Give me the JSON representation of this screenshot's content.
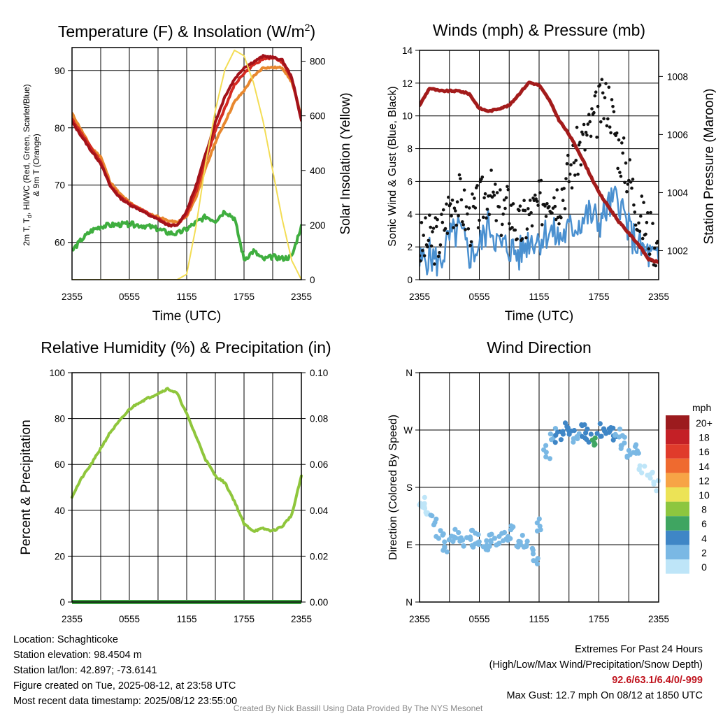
{
  "chart_data": [
    {
      "type": "line",
      "title": "Temperature (F) & Insolation (W/m²)",
      "title_parts": {
        "main": "Temperature (F) & Insolation (W/m",
        "sup": "2",
        "end": ")"
      },
      "xlabel": "Time (UTC)",
      "ylabel": {
        "lead": "2m T, T",
        "sub": "d",
        "tail": ", HI/WC (Red, Green, Scarlet/Blue)",
        "line2": "& 9m T (Orange)"
      },
      "ylabel_right": "Solar Insolation (Yellow)",
      "x_ticks": [
        "2355",
        "0555",
        "1155",
        "1755",
        "2355"
      ],
      "y_ticks": [
        "60",
        "70",
        "80",
        "90"
      ],
      "y_ticks_right": [
        "0",
        "200",
        "400",
        "600",
        "800"
      ],
      "ylim": [
        53.5,
        94
      ],
      "ylim_right": [
        0,
        850
      ],
      "grid": true,
      "x": [
        0,
        1,
        2,
        3,
        4,
        5,
        6,
        7,
        8,
        9,
        10,
        11,
        12,
        13,
        14,
        15,
        16,
        17,
        18,
        19,
        20,
        21,
        22,
        23,
        24
      ],
      "series": [
        {
          "color": "#e8882f",
          "axis": "left",
          "values": [
            82.5,
            79.5,
            76.5,
            75.0,
            70.5,
            68.5,
            67.0,
            66.0,
            65.0,
            64.5,
            63.8,
            63.5,
            64.5,
            68.0,
            73.0,
            77.5,
            81.0,
            84.5,
            86.5,
            89.0,
            90.5,
            90.5,
            90.5,
            88.0,
            82.0
          ]
        },
        {
          "color": "#d42a22",
          "axis": "left",
          "values": [
            81.5,
            79.0,
            76.5,
            74.0,
            70.0,
            68.0,
            66.8,
            66.0,
            65.0,
            64.2,
            63.2,
            63.0,
            65.0,
            69.0,
            74.5,
            79.5,
            83.5,
            87.5,
            89.5,
            91.0,
            92.0,
            92.2,
            91.5,
            88.5,
            81.5
          ]
        },
        {
          "color": "#a3121a",
          "axis": "left",
          "values": [
            81.0,
            78.5,
            76.0,
            73.8,
            69.8,
            67.8,
            66.6,
            65.8,
            64.8,
            64.0,
            63.0,
            62.9,
            65.5,
            70.0,
            75.5,
            81.0,
            85.5,
            88.5,
            90.5,
            91.5,
            92.5,
            92.3,
            91.8,
            88.8,
            81.3
          ]
        },
        {
          "color": "#3fae3f",
          "axis": "left",
          "values": [
            58.5,
            60.5,
            62.0,
            62.8,
            63.0,
            63.1,
            63.2,
            63.0,
            62.8,
            62.3,
            61.7,
            61.5,
            62.3,
            63.5,
            64.5,
            63.8,
            65.5,
            64.2,
            57.0,
            58.5,
            57.0,
            57.5,
            57.2,
            57.5,
            63.0
          ]
        },
        {
          "color": "#f3dd55",
          "axis": "right",
          "values": [
            0,
            0,
            0,
            0,
            0,
            0,
            0,
            0,
            0,
            0,
            0,
            0,
            20,
            200,
            430,
            620,
            770,
            840,
            820,
            720,
            580,
            400,
            220,
            70,
            0
          ]
        }
      ]
    },
    {
      "type": "line",
      "title": "Winds (mph) & Pressure (mb)",
      "xlabel": "Time (UTC)",
      "ylabel": "Sonic Wind & Gust (Blue, Black)",
      "ylabel_right": "Station Pressure (Maroon)",
      "x_ticks": [
        "2355",
        "0555",
        "1155",
        "1755",
        "2355"
      ],
      "y_ticks": [
        "0",
        "2",
        "4",
        "6",
        "8",
        "10",
        "12",
        "14"
      ],
      "y_ticks_right": [
        "1002",
        "1004",
        "1006",
        "1008"
      ],
      "ylim": [
        0,
        14
      ],
      "ylim_right": [
        1001.0,
        1008.9
      ],
      "grid": true,
      "x": [
        0,
        1,
        2,
        3,
        4,
        5,
        6,
        7,
        8,
        9,
        10,
        11,
        12,
        13,
        14,
        15,
        16,
        17,
        18,
        19,
        20,
        21,
        22,
        23,
        24
      ],
      "series": [
        {
          "color": "#4a90d0",
          "axis": "left",
          "values": [
            1.0,
            1.5,
            1.0,
            2.5,
            3.0,
            1.5,
            2.0,
            3.5,
            2.0,
            2.0,
            1.5,
            2.5,
            2.5,
            3.0,
            2.5,
            3.0,
            3.5,
            4.0,
            3.5,
            4.5,
            5.0,
            3.0,
            2.0,
            1.5,
            1.0
          ]
        },
        {
          "color": "#111111",
          "axis": "left",
          "values": [
            2.0,
            2.5,
            2.5,
            4.5,
            5.0,
            3.5,
            4.5,
            5.5,
            4.0,
            4.5,
            3.0,
            4.0,
            4.5,
            5.5,
            5.0,
            6.5,
            8.0,
            9.0,
            10.5,
            11.0,
            8.0,
            6.5,
            4.0,
            3.0,
            2.0
          ]
        },
        {
          "color": "#a31b1b",
          "axis": "right",
          "values": [
            1007.0,
            1007.6,
            1007.5,
            1007.5,
            1007.5,
            1007.4,
            1006.9,
            1006.8,
            1006.9,
            1007.0,
            1007.4,
            1007.8,
            1007.7,
            1007.2,
            1006.5,
            1006.0,
            1005.4,
            1004.7,
            1004.0,
            1003.5,
            1003.0,
            1002.6,
            1002.2,
            1001.7,
            1001.6
          ]
        }
      ]
    },
    {
      "type": "line",
      "title": "Relative Humidity (%) & Precipitation (in)",
      "xlabel": "",
      "ylabel": "Percent & Precipitation",
      "x_ticks": [
        "2355",
        "0555",
        "1155",
        "1755",
        "2355"
      ],
      "y_ticks": [
        "0",
        "20",
        "40",
        "60",
        "80",
        "100"
      ],
      "y_ticks_right": [
        "0.00",
        "0.02",
        "0.04",
        "0.06",
        "0.08",
        "0.10"
      ],
      "ylim": [
        0,
        100
      ],
      "ylim_right": [
        0,
        0.1
      ],
      "grid": true,
      "x": [
        0,
        1,
        2,
        3,
        4,
        5,
        6,
        7,
        8,
        9,
        10,
        11,
        12,
        13,
        14,
        15,
        16,
        17,
        18,
        19,
        20,
        21,
        22,
        23,
        24
      ],
      "series": [
        {
          "color": "#8fc63c",
          "axis": "left",
          "values": [
            46,
            54,
            60,
            67,
            74,
            79,
            84,
            87,
            89,
            91,
            93,
            91,
            82,
            72,
            62,
            55,
            52,
            44,
            34,
            31,
            32,
            31,
            33,
            38,
            55
          ]
        },
        {
          "color": "#3fa043",
          "axis": "right",
          "values": [
            0,
            0,
            0,
            0,
            0,
            0,
            0,
            0,
            0,
            0,
            0,
            0,
            0,
            0,
            0,
            0,
            0,
            0,
            0,
            0,
            0,
            0,
            0,
            0,
            0
          ]
        }
      ]
    },
    {
      "type": "scatter",
      "title": "Wind Direction",
      "xlabel": "",
      "ylabel": "Direction (Colored By Speed)",
      "x_ticks": [
        "2355",
        "0555",
        "1155",
        "1755",
        "2355"
      ],
      "y_ticks": [
        "N",
        "E",
        "S",
        "W",
        "N"
      ],
      "ylim": [
        0,
        360
      ],
      "grid": true,
      "x": [
        0.2,
        0.8,
        1.5,
        2.0,
        2.6,
        3.2,
        3.8,
        4.4,
        5.0,
        5.6,
        6.2,
        6.8,
        7.4,
        8.0,
        8.6,
        9.2,
        9.8,
        10.4,
        11.0,
        11.6,
        12.2,
        12.8,
        13.4,
        14.0,
        14.6,
        15.2,
        15.8,
        16.4,
        17.0,
        17.6,
        18.2,
        18.8,
        19.4,
        20.0,
        20.6,
        21.2,
        21.8,
        22.4,
        23.0,
        23.6
      ],
      "values": [
        155,
        145,
        128,
        110,
        88,
        93,
        105,
        90,
        95,
        102,
        96,
        92,
        98,
        95,
        100,
        110,
        90,
        95,
        85,
        68,
        120,
        235,
        262,
        258,
        272,
        268,
        260,
        270,
        262,
        255,
        270,
        262,
        265,
        268,
        250,
        232,
        240,
        210,
        205,
        185
      ],
      "speed": [
        1,
        1,
        2,
        2,
        3,
        2,
        2,
        3,
        2,
        3,
        2,
        2,
        2,
        3,
        2,
        3,
        2,
        3,
        3,
        2,
        2,
        3,
        3,
        4,
        4,
        4,
        3,
        4,
        5,
        6,
        5,
        4,
        4,
        3,
        3,
        2,
        2,
        1,
        1,
        1
      ],
      "legend": {
        "title": "mph",
        "labels": [
          "20+",
          "18",
          "16",
          "14",
          "12",
          "10",
          "8",
          "6",
          "4",
          "2",
          "0"
        ],
        "colors": [
          "#9c1b1e",
          "#c42026",
          "#e03b2b",
          "#ef6a2f",
          "#f7a446",
          "#ece356",
          "#8dc63f",
          "#3fa561",
          "#3f86c6",
          "#7ab8e4",
          "#bee5f8"
        ]
      }
    }
  ],
  "info": {
    "location": "Location: Schaghticoke",
    "elevation": "Station elevation: 98.4504 m",
    "latlon": "Station lat/lon: 42.897; -73.6141",
    "created": "Figure created on Tue, 2025-08-12, at 23:58 UTC",
    "recent": "Most recent data timestamp: 2025/08/12 23:55:00"
  },
  "extremes": {
    "title": "Extremes For Past 24 Hours",
    "subtitle": "(High/Low/Max Wind/Precipitation/Snow Depth)",
    "values": "92.6/63.1/6.4/0/-999",
    "max_gust": "Max Gust: 12.7 mph On 08/12 at 1850 UTC"
  },
  "credit": "Created By Nick Bassill Using Data Provided By The NYS Mesonet"
}
